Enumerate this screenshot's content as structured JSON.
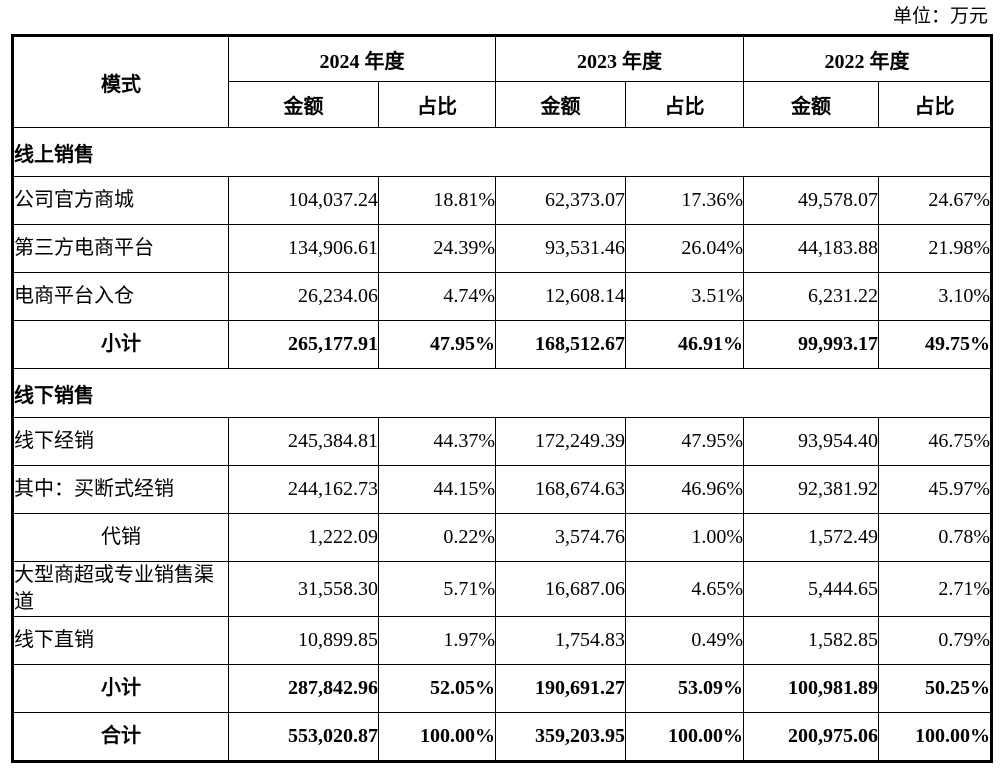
{
  "unit_label": "单位：万元",
  "table": {
    "mode_header": "模式",
    "year_groups": [
      {
        "year": "2024 年度",
        "sub": [
          "金额",
          "占比"
        ]
      },
      {
        "year": "2023 年度",
        "sub": [
          "金额",
          "占比"
        ]
      },
      {
        "year": "2022 年度",
        "sub": [
          "金额",
          "占比"
        ]
      }
    ],
    "rows": [
      {
        "type": "section",
        "label": "线上销售"
      },
      {
        "type": "data",
        "align": "left",
        "label": "公司官方商城",
        "values": [
          "104,037.24",
          "18.81%",
          "62,373.07",
          "17.36%",
          "49,578.07",
          "24.67%"
        ]
      },
      {
        "type": "data",
        "align": "left",
        "label": "第三方电商平台",
        "values": [
          "134,906.61",
          "24.39%",
          "93,531.46",
          "26.04%",
          "44,183.88",
          "21.98%"
        ]
      },
      {
        "type": "data",
        "align": "left",
        "label": "电商平台入仓",
        "values": [
          "26,234.06",
          "4.74%",
          "12,608.14",
          "3.51%",
          "6,231.22",
          "3.10%"
        ]
      },
      {
        "type": "subtotal",
        "align": "center",
        "label": "小计",
        "values": [
          "265,177.91",
          "47.95%",
          "168,512.67",
          "46.91%",
          "99,993.17",
          "49.75%"
        ]
      },
      {
        "type": "section",
        "label": "线下销售"
      },
      {
        "type": "data",
        "align": "left",
        "label": "线下经销",
        "values": [
          "245,384.81",
          "44.37%",
          "172,249.39",
          "47.95%",
          "93,954.40",
          "46.75%"
        ]
      },
      {
        "type": "data",
        "align": "left",
        "label": "其中：买断式经销",
        "values": [
          "244,162.73",
          "44.15%",
          "168,674.63",
          "46.96%",
          "92,381.92",
          "45.97%"
        ]
      },
      {
        "type": "data",
        "align": "center",
        "label": "代销",
        "values": [
          "1,222.09",
          "0.22%",
          "3,574.76",
          "1.00%",
          "1,572.49",
          "0.78%"
        ]
      },
      {
        "type": "data",
        "align": "left",
        "label": "大型商超或专业销售渠道",
        "values": [
          "31,558.30",
          "5.71%",
          "16,687.06",
          "4.65%",
          "5,444.65",
          "2.71%"
        ]
      },
      {
        "type": "data",
        "align": "left",
        "label": "线下直销",
        "values": [
          "10,899.85",
          "1.97%",
          "1,754.83",
          "0.49%",
          "1,582.85",
          "0.79%"
        ]
      },
      {
        "type": "subtotal",
        "align": "center",
        "label": "小计",
        "values": [
          "287,842.96",
          "52.05%",
          "190,691.27",
          "53.09%",
          "100,981.89",
          "50.25%"
        ]
      },
      {
        "type": "total",
        "align": "center",
        "label": "合计",
        "values": [
          "553,020.87",
          "100.00%",
          "359,203.95",
          "100.00%",
          "200,975.06",
          "100.00%"
        ]
      }
    ]
  }
}
